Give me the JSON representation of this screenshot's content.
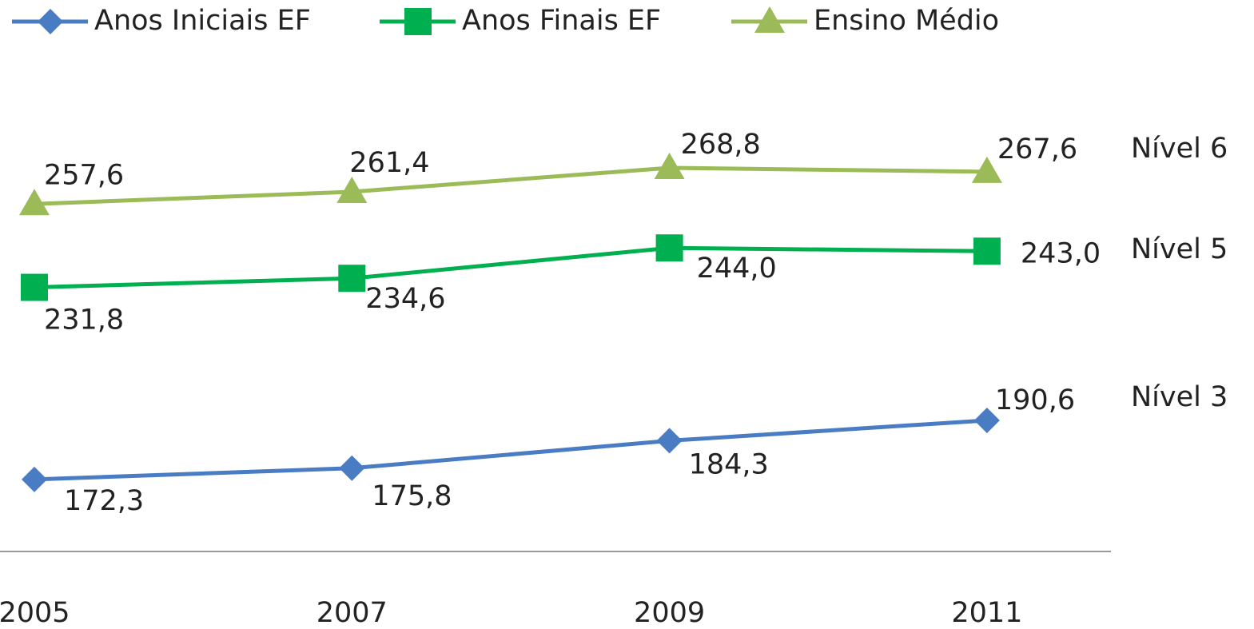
{
  "chart_data": {
    "type": "line",
    "categories": [
      "2005",
      "2007",
      "2009",
      "2011"
    ],
    "series": [
      {
        "name": "Anos Iniciais EF",
        "color": "#4a7cc4",
        "marker": "diamond",
        "values": [
          172.3,
          175.8,
          184.3,
          190.6
        ],
        "value_labels": [
          "172,3",
          "175,8",
          "184,3",
          "190,6"
        ]
      },
      {
        "name": "Anos Finais EF",
        "color": "#00b050",
        "marker": "square",
        "values": [
          231.8,
          234.6,
          244.0,
          243.0
        ],
        "value_labels": [
          "231,8",
          "234,6",
          "244,0",
          "243,0"
        ]
      },
      {
        "name": "Ensino Médio",
        "color": "#9bbb59",
        "marker": "triangle",
        "values": [
          257.6,
          261.4,
          268.8,
          267.6
        ],
        "value_labels": [
          "257,6",
          "261,4",
          "268,8",
          "267,6"
        ]
      }
    ],
    "ylim": [
      150,
      300
    ],
    "annotations": [
      "Nível 6",
      "Nível 5",
      "Nível 3"
    ]
  }
}
